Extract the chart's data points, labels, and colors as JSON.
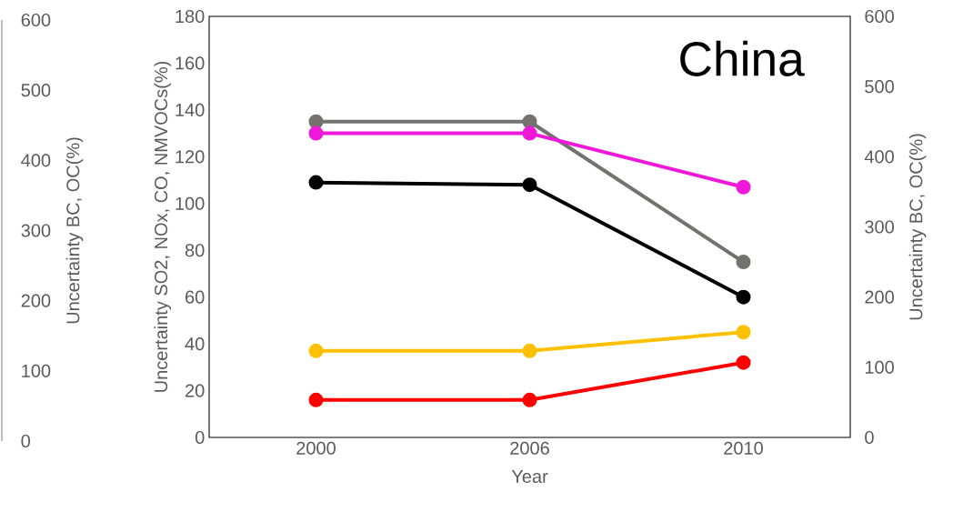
{
  "chart_data": {
    "type": "line",
    "title": "China",
    "xlabel": "Year",
    "ylabel": "Uncertainty SO2, NOx, CO, NMVOCs(%)",
    "y2label": "Uncertainty  BC, OC(%)",
    "y3label": "Uncertainty  BC, OC(%)",
    "categories": [
      "2000",
      "2006",
      "2010"
    ],
    "ylim": [
      0,
      180
    ],
    "yticks": [
      0,
      20,
      40,
      60,
      80,
      100,
      120,
      140,
      160,
      180
    ],
    "y2lim": [
      0,
      600
    ],
    "y2ticks": [
      0,
      100,
      200,
      300,
      400,
      500,
      600
    ],
    "y3lim": [
      0,
      600
    ],
    "y3ticks": [
      0,
      100,
      200,
      300,
      400,
      500,
      600
    ],
    "marker": "circle",
    "line_style": "solid",
    "series": [
      {
        "color": "#767171",
        "values": [
          135,
          135,
          75
        ]
      },
      {
        "color": "#f018d8",
        "values": [
          130,
          130,
          107
        ]
      },
      {
        "color": "#000000",
        "values": [
          109,
          108,
          60
        ]
      },
      {
        "color": "#ffc000",
        "values": [
          37,
          37,
          45
        ]
      },
      {
        "color": "#ff0000",
        "values": [
          16,
          16,
          32
        ]
      }
    ]
  }
}
